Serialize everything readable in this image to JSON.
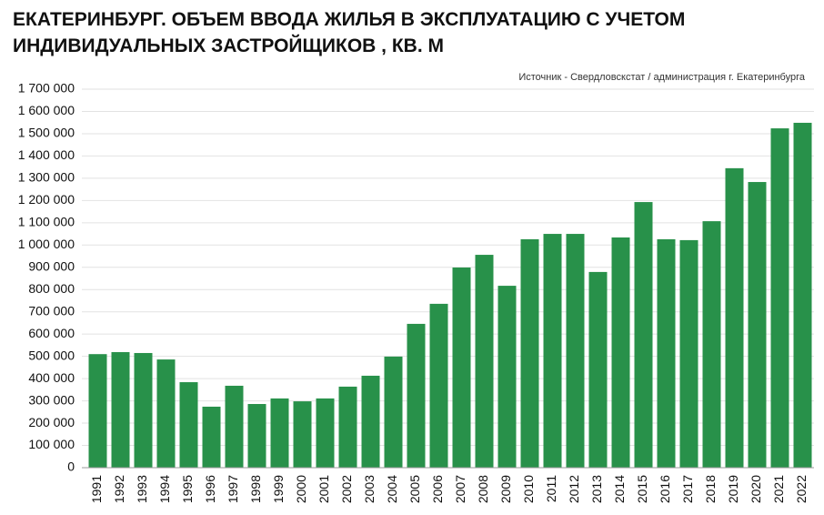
{
  "chart_data": {
    "type": "bar",
    "title": [
      "ЕКАТЕРИНБУРГ. ОБЪЕМ ВВОДА ЖИЛЬЯ В ЭКСПЛУАТАЦИЮ С УЧЕТОМ",
      "ИНДИВИДУАЛЬНЫХ ЗАСТРОЙЩИКОВ , КВ. М"
    ],
    "source": "Источник - Свердловскстат / администрация г. Екатеринбурга",
    "categories": [
      "1991",
      "1992",
      "1993",
      "1994",
      "1995",
      "1996",
      "1997",
      "1998",
      "1999",
      "2000",
      "2001",
      "2002",
      "2003",
      "2004",
      "2005",
      "2006",
      "2007",
      "2008",
      "2009",
      "2010",
      "2011",
      "2012",
      "2013",
      "2014",
      "2015",
      "2016",
      "2017",
      "2018",
      "2019",
      "2020",
      "2021",
      "2022"
    ],
    "values": [
      510000,
      519000,
      515000,
      486000,
      384000,
      274000,
      368000,
      286000,
      311000,
      298000,
      311000,
      364000,
      413000,
      499000,
      646000,
      736000,
      899000,
      956000,
      817000,
      1026000,
      1050000,
      1050000,
      879000,
      1034000,
      1193000,
      1026000,
      1022000,
      1107000,
      1345000,
      1283000,
      1524000,
      1549000
    ],
    "color": "#28914a",
    "ylim": [
      0,
      1700000
    ],
    "yticks": [
      0,
      {
        "value": 100000,
        "label": "100 000"
      },
      {
        "value": 200000,
        "label": "200 000"
      },
      {
        "value": 300000,
        "label": "300 000"
      },
      {
        "value": 400000,
        "label": "400 000"
      },
      {
        "value": 500000,
        "label": "500 000"
      },
      {
        "value": 600000,
        "label": "600 000"
      },
      {
        "value": 700000,
        "label": "700 000"
      },
      {
        "value": 800000,
        "label": "800 000"
      },
      {
        "value": 900000,
        "label": "900 000"
      },
      {
        "value": 1000000,
        "label": "1 000 000"
      },
      {
        "value": 1100000,
        "label": "1 100 000"
      },
      {
        "value": 1200000,
        "label": "1 200 000"
      },
      {
        "value": 1300000,
        "label": "1 300 000"
      },
      {
        "value": 1400000,
        "label": "1 400 000"
      },
      {
        "value": 1500000,
        "label": "1 500 000"
      },
      {
        "value": 1600000,
        "label": "1 600 000"
      },
      {
        "value": 1700000,
        "label": "1 700 000"
      }
    ],
    "grid": true
  }
}
